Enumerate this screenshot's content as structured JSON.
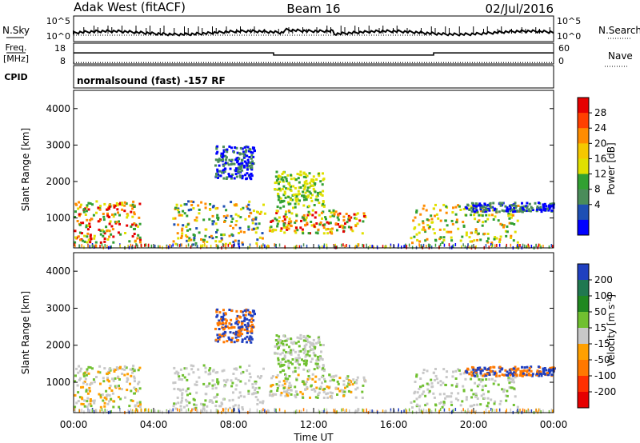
{
  "header": {
    "station": "Adak West (fitACF)",
    "beam": "Beam 16",
    "date": "02/Jul/2016"
  },
  "panels": {
    "nsky": {
      "label": "N.Sky",
      "tick_top": "10^5",
      "tick_bottom": "10^0"
    },
    "nsearch": {
      "label": "N.Search",
      "tick_top": "10^5",
      "tick_bottom": "10^0"
    },
    "freq": {
      "label_top": "Freq.",
      "label_bottom": "[MHz]",
      "tick_top": "18",
      "tick_bottom": "8"
    },
    "nave": {
      "label": "Nave",
      "tick_top": "60",
      "tick_bottom": "0"
    },
    "cpid": {
      "label": "CPID",
      "text": "normalsound (fast) -157 RF"
    }
  },
  "axes": {
    "ylabel": "Slant Range [km]",
    "yticks": [
      "4000",
      "3000",
      "2000",
      "1000"
    ],
    "xticks": [
      "00:00",
      "04:00",
      "08:00",
      "12:00",
      "16:00",
      "20:00",
      "00:00"
    ],
    "xlabel": "Time UT"
  },
  "colorbars": {
    "power": {
      "label": "Power [dB]",
      "ticks": [
        "28",
        "24",
        "20",
        "16",
        "12",
        "8",
        "4"
      ],
      "colors": [
        "#e60000",
        "#ff4000",
        "#ff8c00",
        "#f5c800",
        "#e0e000",
        "#32a032",
        "#4a8c5a",
        "#1e4fb4",
        "#0000ff"
      ]
    },
    "velocity": {
      "label_text": "Velocity [m s",
      "label_sup": "-1",
      "label_close": "]",
      "ticks": [
        "200",
        "100",
        "50",
        "15",
        "-15",
        "-50",
        "-100",
        "-200"
      ],
      "colors": [
        "#2040c0",
        "#207850",
        "#208820",
        "#70c030",
        "#c8c8c8",
        "#ffa000",
        "#ff7800",
        "#ff3000",
        "#e60000"
      ]
    }
  },
  "chart_data": {
    "type": "heatmap",
    "title": "Adak West (fitACF) Beam 16 02/Jul/2016",
    "x_range_hours": [
      0,
      24
    ],
    "y_range_km": [
      180,
      4500
    ],
    "frequency_mhz": [
      {
        "from": "00:00",
        "to": "10:00",
        "value": 13.5
      },
      {
        "from": "10:00",
        "to": "18:00",
        "value": 12.0
      },
      {
        "from": "18:00",
        "to": "24:00",
        "value": 13.5
      }
    ],
    "nave_level": 4,
    "panels": [
      "Power [dB]",
      "Velocity [m s-1]"
    ]
  }
}
